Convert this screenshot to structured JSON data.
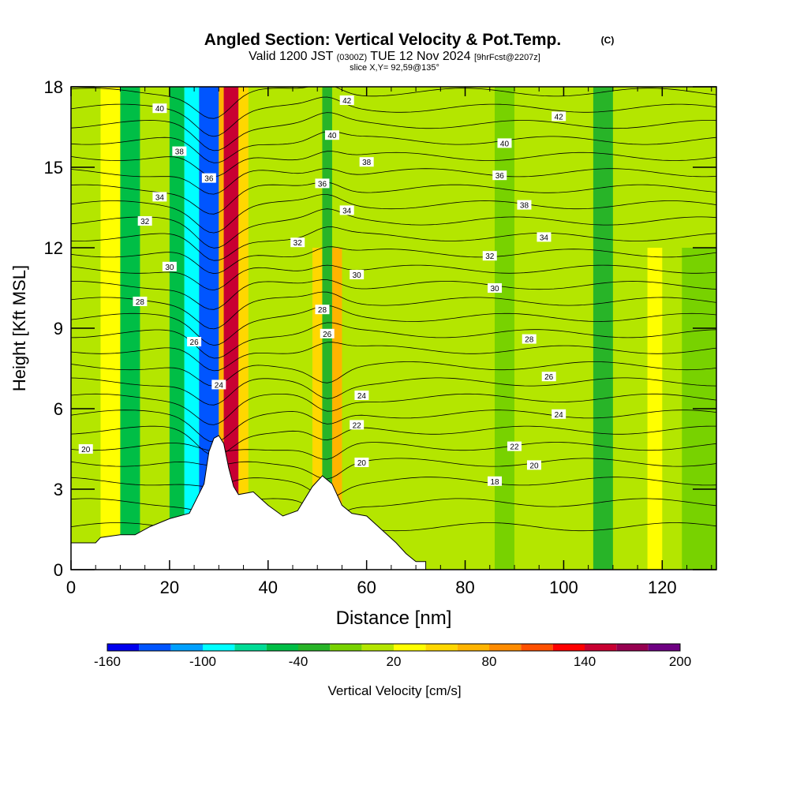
{
  "chart_data": {
    "type": "heatmap",
    "title": "Angled Section: Vertical Velocity & Pot.Temp.",
    "title_mark": "(C)",
    "subtitle": {
      "prefix": "Valid 1200 JST",
      "zulu": "(0300Z)",
      "date": "TUE 12 Nov 2024",
      "fcst": "[9hrFcst@2207z]"
    },
    "slice_label": "slice X,Y= 92,59@135°",
    "xlabel": "Distance [nm]",
    "ylabel": "Height [Kft MSL]",
    "xlim": [
      0,
      131
    ],
    "ylim": [
      0,
      18
    ],
    "x_ticks": [
      "0",
      "20",
      "40",
      "60",
      "80",
      "100",
      "120"
    ],
    "x_tick_values": [
      0,
      20,
      40,
      60,
      80,
      100,
      120
    ],
    "y_ticks": [
      "0",
      "3",
      "6",
      "9",
      "12",
      "15",
      "18"
    ],
    "y_tick_values": [
      0,
      3,
      6,
      9,
      12,
      15,
      18
    ],
    "colorbar": {
      "label": "Vertical Velocity [cm/s]",
      "levels": [
        -160,
        -140,
        -120,
        -100,
        -80,
        -60,
        -40,
        -20,
        0,
        20,
        40,
        60,
        80,
        100,
        120,
        140,
        160,
        180,
        200
      ],
      "tick_labels": [
        "-160",
        "-100",
        "-40",
        "20",
        "80",
        "140",
        "200"
      ],
      "tick_values": [
        -160,
        -100,
        -40,
        20,
        80,
        140,
        200
      ],
      "colors": [
        "#0000ee",
        "#0055ff",
        "#00a0ff",
        "#00ffff",
        "#00dc96",
        "#00be46",
        "#28b428",
        "#78d200",
        "#b4e600",
        "#ffff00",
        "#ffd700",
        "#ffb400",
        "#ff8c00",
        "#ff5000",
        "#ff0000",
        "#c80032",
        "#960050",
        "#6e0082"
      ]
    },
    "wind_bands": [
      {
        "x": [
          6,
          10
        ],
        "w": 25,
        "to_top": true
      },
      {
        "x": [
          10,
          14
        ],
        "w": -45,
        "to_top": true
      },
      {
        "x": [
          20,
          23
        ],
        "w": -45,
        "to_top": true
      },
      {
        "x": [
          23,
          26
        ],
        "w": -85,
        "to_top": true
      },
      {
        "x": [
          26,
          30
        ],
        "w": -130,
        "to_top": true
      },
      {
        "x": [
          30,
          31
        ],
        "w": 70,
        "to_top": true
      },
      {
        "x": [
          31,
          34
        ],
        "w": 150,
        "to_top": true
      },
      {
        "x": [
          34,
          36
        ],
        "w": 50,
        "to_top": true
      },
      {
        "x": [
          49,
          51
        ],
        "w": 55,
        "to_top": false
      },
      {
        "x": [
          51,
          53
        ],
        "w": -40,
        "to_top": true
      },
      {
        "x": [
          53,
          55
        ],
        "w": 70,
        "to_top": false
      },
      {
        "x": [
          72,
          80
        ],
        "w": 15,
        "to_top": false
      },
      {
        "x": [
          86,
          90
        ],
        "w": -20,
        "to_top": true
      },
      {
        "x": [
          106,
          110
        ],
        "w": -40,
        "to_top": true
      },
      {
        "x": [
          117,
          120
        ],
        "w": 25,
        "to_top": false
      },
      {
        "x": [
          124,
          131
        ],
        "w": -20,
        "to_top": false
      }
    ],
    "terrain": [
      [
        0,
        1.0
      ],
      [
        5,
        1.0
      ],
      [
        6,
        1.2
      ],
      [
        10,
        1.3
      ],
      [
        13,
        1.3
      ],
      [
        16,
        1.6
      ],
      [
        20,
        1.9
      ],
      [
        24,
        2.1
      ],
      [
        27,
        3.2
      ],
      [
        28,
        4.4
      ],
      [
        29,
        4.9
      ],
      [
        30,
        5.0
      ],
      [
        31,
        4.7
      ],
      [
        32,
        3.8
      ],
      [
        33,
        3.1
      ],
      [
        34,
        2.8
      ],
      [
        37,
        2.9
      ],
      [
        40,
        2.4
      ],
      [
        43,
        2.0
      ],
      [
        46,
        2.2
      ],
      [
        49,
        3.1
      ],
      [
        51,
        3.5
      ],
      [
        53,
        3.2
      ],
      [
        55,
        2.4
      ],
      [
        57,
        2.1
      ],
      [
        60,
        2.0
      ],
      [
        63,
        1.5
      ],
      [
        66,
        1.0
      ],
      [
        68,
        0.6
      ],
      [
        70,
        0.3
      ],
      [
        72,
        0.3
      ]
    ],
    "theta_labels": [
      {
        "text": "40",
        "x": 18,
        "y": 17.2
      },
      {
        "text": "38",
        "x": 22,
        "y": 15.6
      },
      {
        "text": "34",
        "x": 18,
        "y": 13.9
      },
      {
        "text": "32",
        "x": 15,
        "y": 13.0
      },
      {
        "text": "30",
        "x": 20,
        "y": 11.3
      },
      {
        "text": "28",
        "x": 14,
        "y": 10.0
      },
      {
        "text": "26",
        "x": 25,
        "y": 8.5
      },
      {
        "text": "36",
        "x": 28,
        "y": 14.6
      },
      {
        "text": "24",
        "x": 30,
        "y": 6.9
      },
      {
        "text": "42",
        "x": 56,
        "y": 17.5
      },
      {
        "text": "40",
        "x": 53,
        "y": 16.2
      },
      {
        "text": "38",
        "x": 60,
        "y": 15.2
      },
      {
        "text": "36",
        "x": 51,
        "y": 14.4
      },
      {
        "text": "34",
        "x": 56,
        "y": 13.4
      },
      {
        "text": "32",
        "x": 46,
        "y": 12.2
      },
      {
        "text": "30",
        "x": 58,
        "y": 11.0
      },
      {
        "text": "28",
        "x": 51,
        "y": 9.7
      },
      {
        "text": "26",
        "x": 52,
        "y": 8.8
      },
      {
        "text": "24",
        "x": 59,
        "y": 6.5
      },
      {
        "text": "22",
        "x": 58,
        "y": 5.4
      },
      {
        "text": "20",
        "x": 59,
        "y": 4.0
      },
      {
        "text": "20",
        "x": 3,
        "y": 4.5
      },
      {
        "text": "42",
        "x": 99,
        "y": 16.9
      },
      {
        "text": "40",
        "x": 88,
        "y": 15.9
      },
      {
        "text": "36",
        "x": 87,
        "y": 14.7
      },
      {
        "text": "38",
        "x": 92,
        "y": 13.6
      },
      {
        "text": "34",
        "x": 96,
        "y": 12.4
      },
      {
        "text": "32",
        "x": 85,
        "y": 11.7
      },
      {
        "text": "30",
        "x": 86,
        "y": 10.5
      },
      {
        "text": "28",
        "x": 93,
        "y": 8.6
      },
      {
        "text": "26",
        "x": 97,
        "y": 7.2
      },
      {
        "text": "24",
        "x": 99,
        "y": 5.8
      },
      {
        "text": "22",
        "x": 90,
        "y": 4.6
      },
      {
        "text": "20",
        "x": 94,
        "y": 3.9
      },
      {
        "text": "18",
        "x": 86,
        "y": 3.3
      }
    ]
  }
}
